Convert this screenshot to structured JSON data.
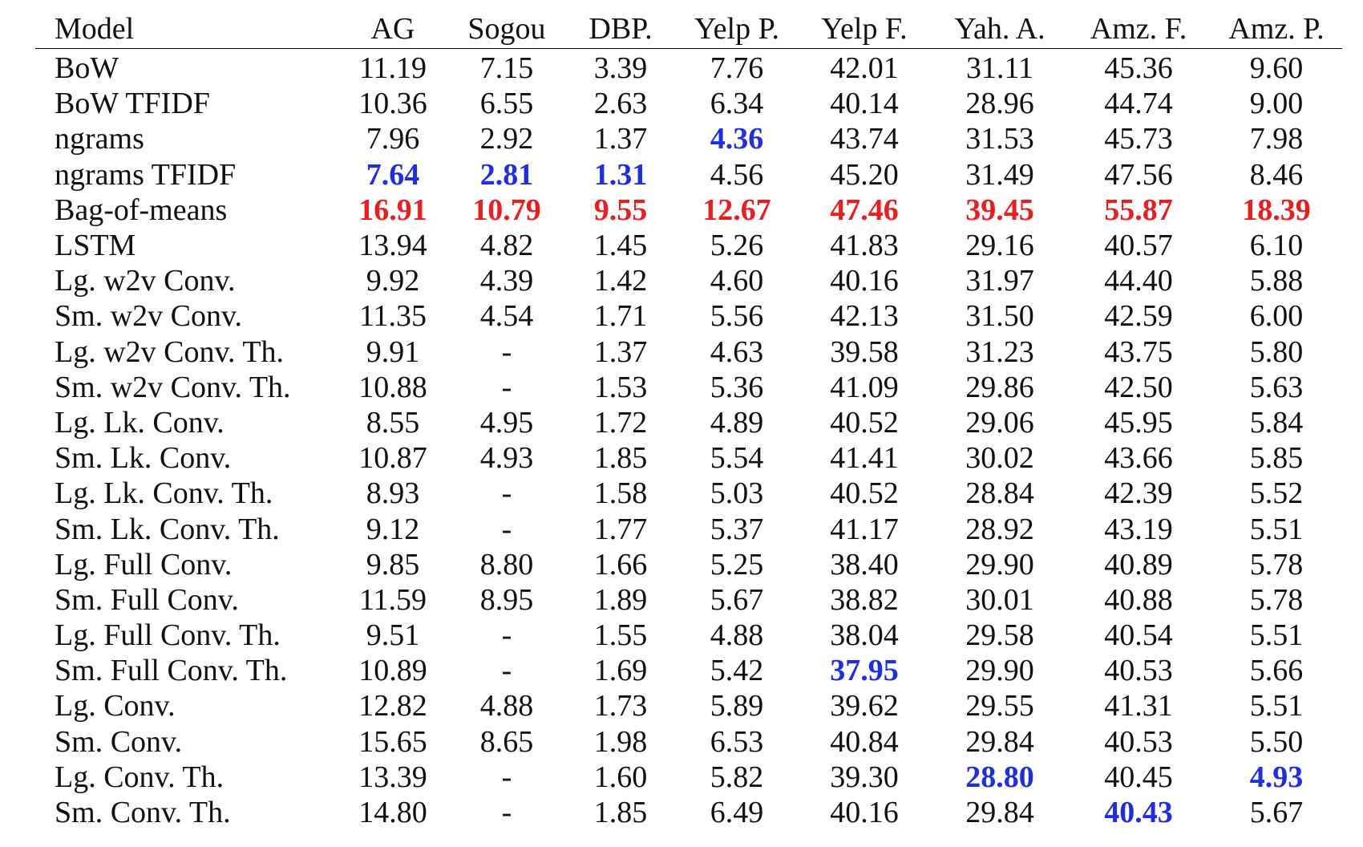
{
  "colors": {
    "best": "#1f2ee6",
    "worst": "#ee1c1c"
  },
  "table": {
    "columns": [
      "Model",
      "AG",
      "Sogou",
      "DBP.",
      "Yelp P.",
      "Yelp F.",
      "Yah. A.",
      "Amz. F.",
      "Amz. P."
    ],
    "rows": [
      {
        "model": "BoW",
        "values": [
          "11.19",
          "7.15",
          "3.39",
          "7.76",
          "42.01",
          "31.11",
          "45.36",
          "9.60"
        ],
        "style": [
          "",
          "",
          "",
          "",
          "",
          "",
          "",
          ""
        ]
      },
      {
        "model": "BoW TFIDF",
        "values": [
          "10.36",
          "6.55",
          "2.63",
          "6.34",
          "40.14",
          "28.96",
          "44.74",
          "9.00"
        ],
        "style": [
          "",
          "",
          "",
          "",
          "",
          "",
          "",
          ""
        ]
      },
      {
        "model": "ngrams",
        "values": [
          "7.96",
          "2.92",
          "1.37",
          "4.36",
          "43.74",
          "31.53",
          "45.73",
          "7.98"
        ],
        "style": [
          "",
          "",
          "",
          "best",
          "",
          "",
          "",
          ""
        ]
      },
      {
        "model": "ngrams TFIDF",
        "values": [
          "7.64",
          "2.81",
          "1.31",
          "4.56",
          "45.20",
          "31.49",
          "47.56",
          "8.46"
        ],
        "style": [
          "best",
          "best",
          "best",
          "",
          "",
          "",
          "",
          ""
        ]
      },
      {
        "model": "Bag-of-means",
        "values": [
          "16.91",
          "10.79",
          "9.55",
          "12.67",
          "47.46",
          "39.45",
          "55.87",
          "18.39"
        ],
        "style": [
          "worst",
          "worst",
          "worst",
          "worst",
          "worst",
          "worst",
          "worst",
          "worst"
        ]
      },
      {
        "model": "LSTM",
        "values": [
          "13.94",
          "4.82",
          "1.45",
          "5.26",
          "41.83",
          "29.16",
          "40.57",
          "6.10"
        ],
        "style": [
          "",
          "",
          "",
          "",
          "",
          "",
          "",
          ""
        ]
      },
      {
        "model": "Lg. w2v Conv.",
        "values": [
          "9.92",
          "4.39",
          "1.42",
          "4.60",
          "40.16",
          "31.97",
          "44.40",
          "5.88"
        ],
        "style": [
          "",
          "",
          "",
          "",
          "",
          "",
          "",
          ""
        ]
      },
      {
        "model": "Sm. w2v Conv.",
        "values": [
          "11.35",
          "4.54",
          "1.71",
          "5.56",
          "42.13",
          "31.50",
          "42.59",
          "6.00"
        ],
        "style": [
          "",
          "",
          "",
          "",
          "",
          "",
          "",
          ""
        ]
      },
      {
        "model": "Lg. w2v Conv. Th.",
        "values": [
          "9.91",
          "-",
          "1.37",
          "4.63",
          "39.58",
          "31.23",
          "43.75",
          "5.80"
        ],
        "style": [
          "",
          "",
          "",
          "",
          "",
          "",
          "",
          ""
        ]
      },
      {
        "model": "Sm. w2v Conv. Th.",
        "values": [
          "10.88",
          "-",
          "1.53",
          "5.36",
          "41.09",
          "29.86",
          "42.50",
          "5.63"
        ],
        "style": [
          "",
          "",
          "",
          "",
          "",
          "",
          "",
          ""
        ]
      },
      {
        "model": "Lg. Lk. Conv.",
        "values": [
          "8.55",
          "4.95",
          "1.72",
          "4.89",
          "40.52",
          "29.06",
          "45.95",
          "5.84"
        ],
        "style": [
          "",
          "",
          "",
          "",
          "",
          "",
          "",
          ""
        ]
      },
      {
        "model": "Sm. Lk. Conv.",
        "values": [
          "10.87",
          "4.93",
          "1.85",
          "5.54",
          "41.41",
          "30.02",
          "43.66",
          "5.85"
        ],
        "style": [
          "",
          "",
          "",
          "",
          "",
          "",
          "",
          ""
        ]
      },
      {
        "model": "Lg. Lk. Conv. Th.",
        "values": [
          "8.93",
          "-",
          "1.58",
          "5.03",
          "40.52",
          "28.84",
          "42.39",
          "5.52"
        ],
        "style": [
          "",
          "",
          "",
          "",
          "",
          "",
          "",
          ""
        ]
      },
      {
        "model": "Sm. Lk. Conv. Th.",
        "values": [
          "9.12",
          "-",
          "1.77",
          "5.37",
          "41.17",
          "28.92",
          "43.19",
          "5.51"
        ],
        "style": [
          "",
          "",
          "",
          "",
          "",
          "",
          "",
          ""
        ]
      },
      {
        "model": "Lg. Full Conv.",
        "values": [
          "9.85",
          "8.80",
          "1.66",
          "5.25",
          "38.40",
          "29.90",
          "40.89",
          "5.78"
        ],
        "style": [
          "",
          "",
          "",
          "",
          "",
          "",
          "",
          ""
        ]
      },
      {
        "model": "Sm. Full Conv.",
        "values": [
          "11.59",
          "8.95",
          "1.89",
          "5.67",
          "38.82",
          "30.01",
          "40.88",
          "5.78"
        ],
        "style": [
          "",
          "",
          "",
          "",
          "",
          "",
          "",
          ""
        ]
      },
      {
        "model": "Lg. Full Conv. Th.",
        "values": [
          "9.51",
          "-",
          "1.55",
          "4.88",
          "38.04",
          "29.58",
          "40.54",
          "5.51"
        ],
        "style": [
          "",
          "",
          "",
          "",
          "",
          "",
          "",
          ""
        ]
      },
      {
        "model": "Sm. Full Conv. Th.",
        "values": [
          "10.89",
          "-",
          "1.69",
          "5.42",
          "37.95",
          "29.90",
          "40.53",
          "5.66"
        ],
        "style": [
          "",
          "",
          "",
          "",
          "best",
          "",
          "",
          ""
        ]
      },
      {
        "model": "Lg. Conv.",
        "values": [
          "12.82",
          "4.88",
          "1.73",
          "5.89",
          "39.62",
          "29.55",
          "41.31",
          "5.51"
        ],
        "style": [
          "",
          "",
          "",
          "",
          "",
          "",
          "",
          ""
        ]
      },
      {
        "model": "Sm. Conv.",
        "values": [
          "15.65",
          "8.65",
          "1.98",
          "6.53",
          "40.84",
          "29.84",
          "40.53",
          "5.50"
        ],
        "style": [
          "",
          "",
          "",
          "",
          "",
          "",
          "",
          ""
        ]
      },
      {
        "model": "Lg. Conv. Th.",
        "values": [
          "13.39",
          "-",
          "1.60",
          "5.82",
          "39.30",
          "28.80",
          "40.45",
          "4.93"
        ],
        "style": [
          "",
          "",
          "",
          "",
          "",
          "best",
          "",
          "best"
        ]
      },
      {
        "model": "Sm. Conv. Th.",
        "values": [
          "14.80",
          "-",
          "1.85",
          "6.49",
          "40.16",
          "29.84",
          "40.43",
          "5.67"
        ],
        "style": [
          "",
          "",
          "",
          "",
          "",
          "",
          "best",
          ""
        ]
      }
    ]
  }
}
